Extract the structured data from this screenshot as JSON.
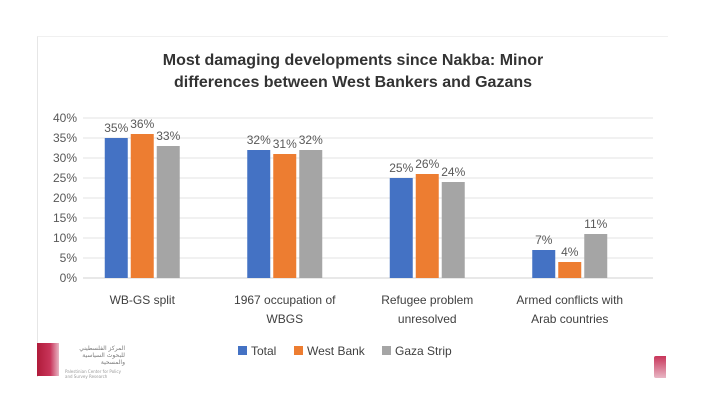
{
  "chart_data": {
    "type": "bar",
    "title": "Most damaging developments since Nakba:  Minor differences between West Bankers and Gazans",
    "title_lines": [
      "Most damaging developments since Nakba:  Minor",
      "differences between West Bankers and Gazans"
    ],
    "categories": [
      "WB-GS split",
      "1967 occupation of WBGS",
      "Refugee problem unresolved",
      "Armed conflicts with Arab countries"
    ],
    "category_lines": [
      [
        "WB-GS split"
      ],
      [
        "1967 occupation of",
        "WBGS"
      ],
      [
        "Refugee problem",
        "unresolved"
      ],
      [
        "Armed conflicts with",
        "Arab countries"
      ]
    ],
    "series": [
      {
        "name": "Total",
        "values": [
          35,
          32,
          25,
          7
        ],
        "labels": [
          "35%",
          "32%",
          "25%",
          "7%"
        ],
        "color": "#4472c4"
      },
      {
        "name": "West Bank",
        "values": [
          36,
          31,
          26,
          4
        ],
        "labels": [
          "36%",
          "31%",
          "26%",
          "4%"
        ],
        "color": "#ed7d31"
      },
      {
        "name": "Gaza Strip",
        "values": [
          33,
          32,
          24,
          11
        ],
        "labels": [
          "33%",
          "32%",
          "24%",
          "11%"
        ],
        "color": "#a5a5a5"
      }
    ],
    "ylim": [
      0,
      40
    ],
    "yticks": [
      0,
      5,
      10,
      15,
      20,
      25,
      30,
      35,
      40
    ],
    "ytick_labels": [
      "0%",
      "5%",
      "10%",
      "15%",
      "20%",
      "25%",
      "30%",
      "35%",
      "40%"
    ],
    "grid": true,
    "legend_position": "bottom",
    "xlabel": "",
    "ylabel": ""
  },
  "logo": {
    "arabic": "المركز الفلسطيني للبحوث السياسية والمسحية",
    "english": "Palestinian Center for Policy and Survey Research"
  }
}
